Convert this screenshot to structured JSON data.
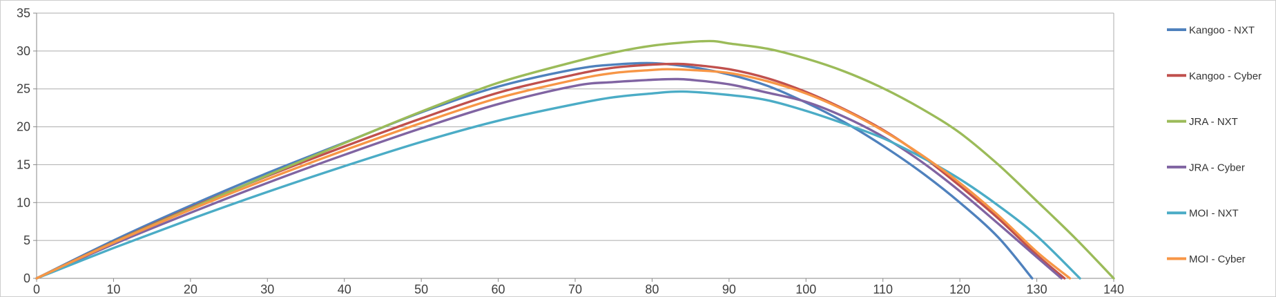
{
  "chart_data": {
    "type": "line",
    "title": "",
    "xlabel": "",
    "ylabel": "",
    "x_axis": {
      "min": 0,
      "max": 140,
      "tick_interval": 10,
      "tick_labels": [
        "0",
        "10",
        "20",
        "30",
        "40",
        "50",
        "60",
        "70",
        "80",
        "90",
        "100",
        "110",
        "120",
        "130",
        "140"
      ]
    },
    "y_axis": {
      "min": 0,
      "max": 35,
      "tick_interval": 5,
      "tick_labels": [
        "0",
        "5",
        "10",
        "15",
        "20",
        "25",
        "30",
        "35"
      ]
    },
    "grid": true,
    "legend_position": "right",
    "series": [
      {
        "name": "Kangoo - NXT",
        "color": "#4F81BD",
        "points": [
          [
            0,
            0
          ],
          [
            10,
            5.0
          ],
          [
            20,
            9.6
          ],
          [
            30,
            13.9
          ],
          [
            40,
            17.9
          ],
          [
            50,
            21.9
          ],
          [
            60,
            25.3
          ],
          [
            70,
            27.6
          ],
          [
            75,
            28.2
          ],
          [
            80,
            28.4
          ],
          [
            85,
            27.9
          ],
          [
            90,
            26.9
          ],
          [
            95,
            25.4
          ],
          [
            100,
            23.2
          ],
          [
            105,
            20.6
          ],
          [
            110,
            17.5
          ],
          [
            115,
            14.0
          ],
          [
            120,
            10.0
          ],
          [
            125,
            5.4
          ],
          [
            129.4,
            0
          ]
        ]
      },
      {
        "name": "Kangoo - Cyber",
        "color": "#C0504D",
        "points": [
          [
            0,
            0
          ],
          [
            10,
            4.8
          ],
          [
            20,
            9.3
          ],
          [
            30,
            13.5
          ],
          [
            40,
            17.4
          ],
          [
            50,
            21.1
          ],
          [
            60,
            24.5
          ],
          [
            70,
            26.9
          ],
          [
            75,
            27.8
          ],
          [
            80,
            28.2
          ],
          [
            83,
            28.3
          ],
          [
            85,
            28.2
          ],
          [
            90,
            27.6
          ],
          [
            95,
            26.4
          ],
          [
            100,
            24.6
          ],
          [
            105,
            22.3
          ],
          [
            110,
            19.6
          ],
          [
            115,
            16.2
          ],
          [
            120,
            12.2
          ],
          [
            125,
            7.9
          ],
          [
            130,
            3.1
          ],
          [
            133.6,
            0
          ]
        ]
      },
      {
        "name": "JRA - NXT",
        "color": "#9BBB59",
        "points": [
          [
            0,
            0
          ],
          [
            10,
            4.75
          ],
          [
            20,
            9.2
          ],
          [
            30,
            13.6
          ],
          [
            40,
            17.85
          ],
          [
            50,
            22.0
          ],
          [
            60,
            25.8
          ],
          [
            70,
            28.6
          ],
          [
            75,
            29.8
          ],
          [
            80,
            30.7
          ],
          [
            85,
            31.2
          ],
          [
            88,
            31.3
          ],
          [
            90,
            31.0
          ],
          [
            95,
            30.3
          ],
          [
            100,
            29.0
          ],
          [
            105,
            27.3
          ],
          [
            110,
            25.1
          ],
          [
            115,
            22.4
          ],
          [
            120,
            19.2
          ],
          [
            125,
            15.0
          ],
          [
            130,
            10.2
          ],
          [
            135,
            5.3
          ],
          [
            140,
            0
          ]
        ]
      },
      {
        "name": "JRA - Cyber",
        "color": "#8064A2",
        "points": [
          [
            0,
            0
          ],
          [
            10,
            4.5
          ],
          [
            20,
            8.65
          ],
          [
            30,
            12.6
          ],
          [
            40,
            16.3
          ],
          [
            50,
            19.8
          ],
          [
            60,
            23.0
          ],
          [
            70,
            25.4
          ],
          [
            75,
            25.9
          ],
          [
            80,
            26.2
          ],
          [
            83,
            26.3
          ],
          [
            85,
            26.2
          ],
          [
            90,
            25.6
          ],
          [
            95,
            24.5
          ],
          [
            100,
            23.3
          ],
          [
            105,
            21.3
          ],
          [
            110,
            18.7
          ],
          [
            115,
            15.4
          ],
          [
            120,
            11.5
          ],
          [
            125,
            7.2
          ],
          [
            130,
            2.8
          ],
          [
            133.2,
            0
          ]
        ]
      },
      {
        "name": "MOI - NXT",
        "color": "#4BACC6",
        "points": [
          [
            0,
            0
          ],
          [
            10,
            4.0
          ],
          [
            20,
            7.8
          ],
          [
            30,
            11.4
          ],
          [
            40,
            14.8
          ],
          [
            50,
            18.0
          ],
          [
            60,
            20.8
          ],
          [
            70,
            23.0
          ],
          [
            75,
            23.9
          ],
          [
            80,
            24.4
          ],
          [
            84,
            24.65
          ],
          [
            90,
            24.2
          ],
          [
            95,
            23.5
          ],
          [
            100,
            22.1
          ],
          [
            105,
            20.4
          ],
          [
            110,
            18.5
          ],
          [
            115,
            16.0
          ],
          [
            120,
            13.1
          ],
          [
            125,
            9.6
          ],
          [
            130,
            5.6
          ],
          [
            135.6,
            0
          ]
        ]
      },
      {
        "name": "MOI - Cyber",
        "color": "#F79646",
        "points": [
          [
            0,
            0
          ],
          [
            10,
            4.7
          ],
          [
            20,
            9.05
          ],
          [
            30,
            13.1
          ],
          [
            40,
            16.9
          ],
          [
            50,
            20.5
          ],
          [
            60,
            23.8
          ],
          [
            70,
            26.2
          ],
          [
            75,
            27.1
          ],
          [
            80,
            27.5
          ],
          [
            82,
            27.6
          ],
          [
            85,
            27.5
          ],
          [
            90,
            27.1
          ],
          [
            95,
            26.0
          ],
          [
            100,
            24.4
          ],
          [
            105,
            22.2
          ],
          [
            110,
            19.5
          ],
          [
            115,
            16.3
          ],
          [
            120,
            12.6
          ],
          [
            125,
            8.3
          ],
          [
            130,
            3.5
          ],
          [
            134.3,
            0
          ]
        ]
      }
    ],
    "style_colors": {
      "gridline": "#ABABAB",
      "axis": "#898989",
      "tick_label": "#3f3f3f",
      "legend_text": "#333333",
      "background": "#ffffff",
      "frame_border": "#cdcdcd"
    }
  }
}
